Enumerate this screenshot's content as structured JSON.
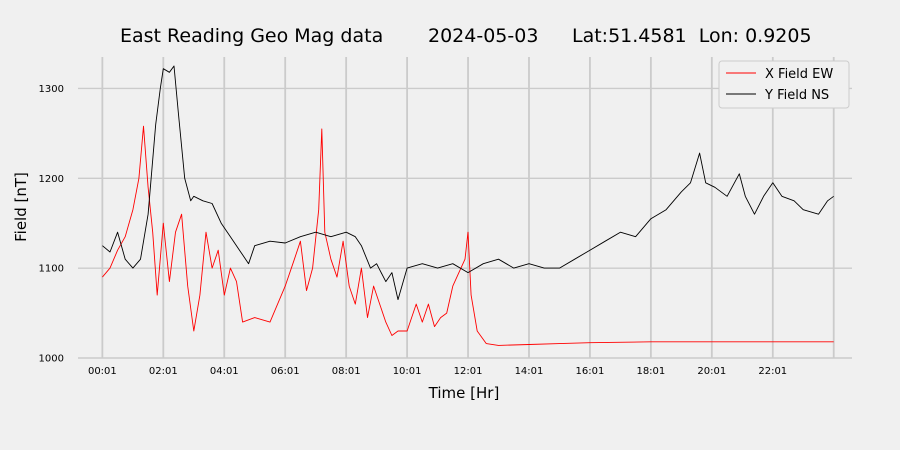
{
  "chart_data": {
    "type": "line",
    "title": {
      "text": "East Reading Geo Mag data",
      "date": "2024-05-03",
      "location": "Lat:51.4581  Lon: 0.9205"
    },
    "xlabel": "Time  [Hr]",
    "ylabel": "Field  [nT]",
    "xticks": [
      "00:01",
      "02:01",
      "04:01",
      "06:01",
      "08:01",
      "10:01",
      "12:01",
      "14:01",
      "16:01",
      "18:01",
      "20:01",
      "22:01"
    ],
    "xlim_hours": [
      -0.8,
      24.6
    ],
    "yticks": [
      1000,
      1100,
      1200,
      1300
    ],
    "ylim": [
      1000,
      1335
    ],
    "grid": true,
    "legend_position": "top-right",
    "series": [
      {
        "name": "X Field EW",
        "color": "#ff0000",
        "points": [
          [
            0.0,
            1090
          ],
          [
            0.25,
            1100
          ],
          [
            0.5,
            1120
          ],
          [
            0.75,
            1135
          ],
          [
            1.0,
            1165
          ],
          [
            1.2,
            1200
          ],
          [
            1.35,
            1258
          ],
          [
            1.5,
            1190
          ],
          [
            1.65,
            1140
          ],
          [
            1.8,
            1070
          ],
          [
            2.0,
            1150
          ],
          [
            2.2,
            1085
          ],
          [
            2.4,
            1140
          ],
          [
            2.6,
            1160
          ],
          [
            2.8,
            1080
          ],
          [
            3.0,
            1030
          ],
          [
            3.2,
            1070
          ],
          [
            3.4,
            1140
          ],
          [
            3.6,
            1100
          ],
          [
            3.8,
            1120
          ],
          [
            4.0,
            1070
          ],
          [
            4.2,
            1100
          ],
          [
            4.4,
            1085
          ],
          [
            4.6,
            1040
          ],
          [
            5.0,
            1045
          ],
          [
            5.5,
            1040
          ],
          [
            6.0,
            1080
          ],
          [
            6.3,
            1110
          ],
          [
            6.5,
            1130
          ],
          [
            6.7,
            1075
          ],
          [
            6.9,
            1100
          ],
          [
            7.1,
            1165
          ],
          [
            7.2,
            1255
          ],
          [
            7.3,
            1140
          ],
          [
            7.5,
            1110
          ],
          [
            7.7,
            1090
          ],
          [
            7.9,
            1130
          ],
          [
            8.1,
            1080
          ],
          [
            8.3,
            1060
          ],
          [
            8.5,
            1100
          ],
          [
            8.7,
            1045
          ],
          [
            8.9,
            1080
          ],
          [
            9.1,
            1060
          ],
          [
            9.3,
            1040
          ],
          [
            9.5,
            1025
          ],
          [
            9.7,
            1030
          ],
          [
            10.0,
            1030
          ],
          [
            10.3,
            1060
          ],
          [
            10.5,
            1040
          ],
          [
            10.7,
            1060
          ],
          [
            10.9,
            1035
          ],
          [
            11.1,
            1045
          ],
          [
            11.3,
            1050
          ],
          [
            11.5,
            1080
          ],
          [
            11.7,
            1095
          ],
          [
            11.9,
            1110
          ],
          [
            12.0,
            1140
          ],
          [
            12.1,
            1070
          ],
          [
            12.3,
            1030
          ],
          [
            12.6,
            1016
          ],
          [
            13.0,
            1014
          ],
          [
            14.0,
            1015
          ],
          [
            15.0,
            1016
          ],
          [
            16.0,
            1017
          ],
          [
            18.0,
            1018
          ],
          [
            20.0,
            1018
          ],
          [
            22.0,
            1018
          ],
          [
            24.0,
            1018
          ]
        ]
      },
      {
        "name": "Y Field NS",
        "color": "#000000",
        "points": [
          [
            0.0,
            1125
          ],
          [
            0.25,
            1118
          ],
          [
            0.5,
            1140
          ],
          [
            0.75,
            1110
          ],
          [
            1.0,
            1100
          ],
          [
            1.25,
            1110
          ],
          [
            1.5,
            1160
          ],
          [
            1.75,
            1260
          ],
          [
            1.9,
            1300
          ],
          [
            2.0,
            1322
          ],
          [
            2.2,
            1318
          ],
          [
            2.35,
            1325
          ],
          [
            2.5,
            1270
          ],
          [
            2.7,
            1200
          ],
          [
            2.9,
            1175
          ],
          [
            3.0,
            1180
          ],
          [
            3.3,
            1175
          ],
          [
            3.6,
            1172
          ],
          [
            3.9,
            1150
          ],
          [
            4.2,
            1135
          ],
          [
            4.5,
            1120
          ],
          [
            4.8,
            1105
          ],
          [
            5.0,
            1125
          ],
          [
            5.5,
            1130
          ],
          [
            6.0,
            1128
          ],
          [
            6.5,
            1135
          ],
          [
            7.0,
            1140
          ],
          [
            7.5,
            1135
          ],
          [
            8.0,
            1140
          ],
          [
            8.3,
            1135
          ],
          [
            8.5,
            1125
          ],
          [
            8.8,
            1100
          ],
          [
            9.0,
            1105
          ],
          [
            9.3,
            1085
          ],
          [
            9.5,
            1095
          ],
          [
            9.7,
            1065
          ],
          [
            10.0,
            1100
          ],
          [
            10.5,
            1105
          ],
          [
            11.0,
            1100
          ],
          [
            11.5,
            1105
          ],
          [
            12.0,
            1095
          ],
          [
            12.5,
            1105
          ],
          [
            13.0,
            1110
          ],
          [
            13.5,
            1100
          ],
          [
            14.0,
            1105
          ],
          [
            14.5,
            1100
          ],
          [
            15.0,
            1100
          ],
          [
            15.5,
            1110
          ],
          [
            16.0,
            1120
          ],
          [
            16.5,
            1130
          ],
          [
            17.0,
            1140
          ],
          [
            17.5,
            1135
          ],
          [
            18.0,
            1155
          ],
          [
            18.5,
            1165
          ],
          [
            19.0,
            1185
          ],
          [
            19.3,
            1195
          ],
          [
            19.6,
            1228
          ],
          [
            19.8,
            1195
          ],
          [
            20.1,
            1190
          ],
          [
            20.5,
            1180
          ],
          [
            20.9,
            1205
          ],
          [
            21.1,
            1180
          ],
          [
            21.4,
            1160
          ],
          [
            21.7,
            1180
          ],
          [
            22.0,
            1195
          ],
          [
            22.3,
            1180
          ],
          [
            22.7,
            1175
          ],
          [
            23.0,
            1165
          ],
          [
            23.5,
            1160
          ],
          [
            23.8,
            1175
          ],
          [
            24.0,
            1180
          ]
        ]
      }
    ]
  }
}
